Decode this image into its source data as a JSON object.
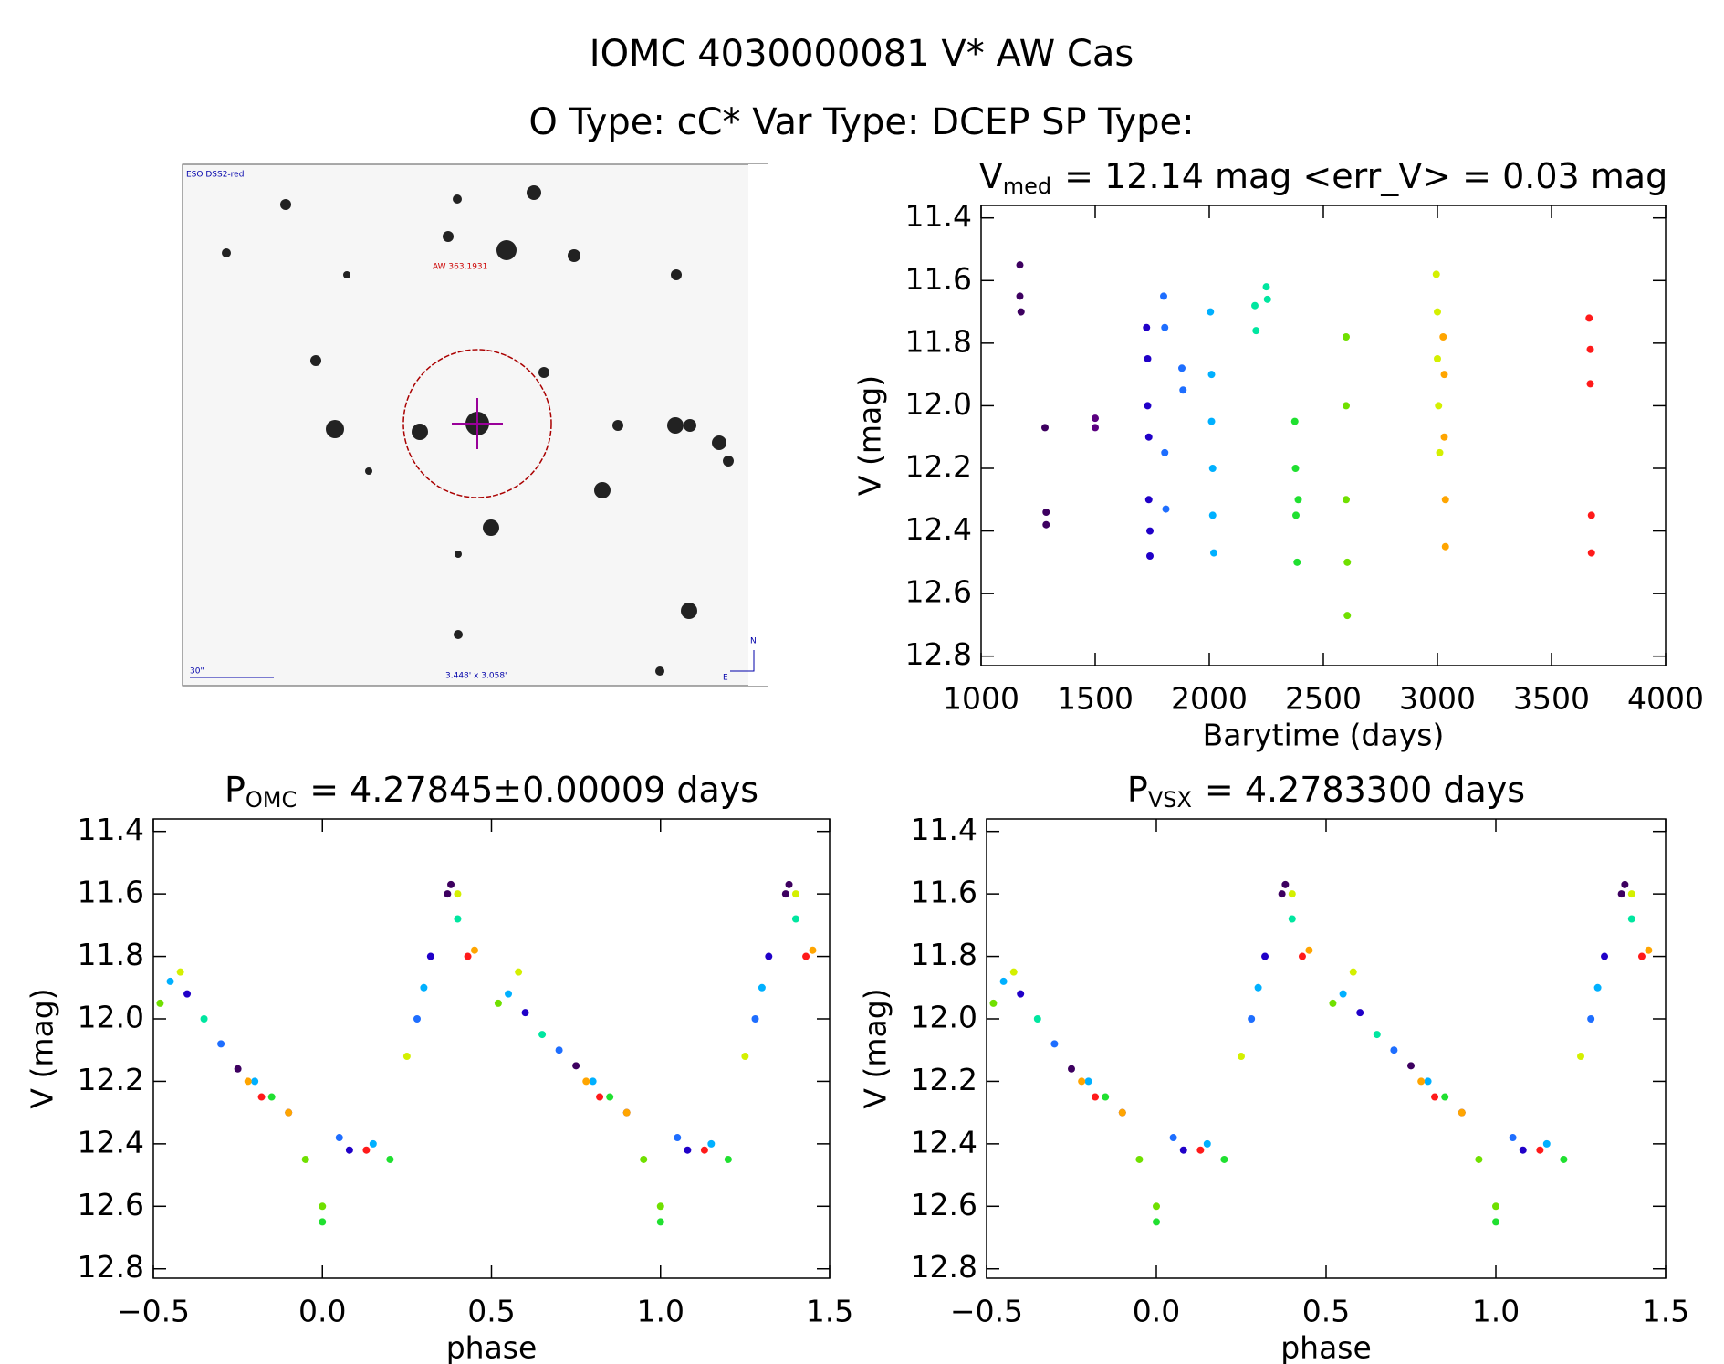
{
  "header": {
    "title": "IOMC 4030000081   V* AW Cas",
    "subtitle": "O Type: cC*  Var Type: DCEP  SP Type:"
  },
  "finder_image": {
    "survey": "ESO DSS2-red",
    "target": "AW 363.1931",
    "scale": "30\"",
    "field": "3.448' x 3.058'",
    "north": "N",
    "east": "E"
  },
  "chart_data": [
    {
      "type": "scatter",
      "title_symbol": "V",
      "title_subscript": "med",
      "title_rest": "= 12.14 mag <err_V> = 0.03 mag",
      "x_label": "Barytime (days)",
      "y_label": "V (mag)",
      "xlim": [
        1000,
        4000
      ],
      "xticks": [
        1000,
        1500,
        2000,
        2500,
        3000,
        3500,
        4000
      ],
      "ylim": [
        12.83,
        11.36
      ],
      "yticks": [
        11.4,
        11.6,
        11.8,
        12.0,
        12.2,
        12.4,
        12.6,
        12.8
      ],
      "series": [
        {
          "color": "#3d0060",
          "x": [
            1170,
            1170,
            1175,
            1280,
            1285,
            1285
          ],
          "values": [
            11.55,
            11.65,
            11.7,
            12.07,
            12.34,
            12.38
          ]
        },
        {
          "color": "#5a0080",
          "x": [
            1500,
            1500
          ],
          "values": [
            12.04,
            12.07
          ]
        },
        {
          "color": "#2000c8",
          "x": [
            1725,
            1730,
            1730,
            1735,
            1735,
            1740,
            1740
          ],
          "values": [
            11.75,
            11.85,
            12.0,
            12.1,
            12.3,
            12.4,
            12.48
          ]
        },
        {
          "color": "#1e6eff",
          "x": [
            1800,
            1805,
            1805,
            1810,
            1880,
            1885
          ],
          "values": [
            11.65,
            11.75,
            12.15,
            12.33,
            11.88,
            11.95
          ]
        },
        {
          "color": "#00b0ff",
          "x": [
            2005,
            2010,
            2010,
            2015,
            2015,
            2020
          ],
          "values": [
            11.7,
            11.9,
            12.05,
            12.2,
            12.35,
            12.47
          ]
        },
        {
          "color": "#00e6a0",
          "x": [
            2200,
            2205,
            2250,
            2255
          ],
          "values": [
            11.68,
            11.76,
            11.62,
            11.66
          ]
        },
        {
          "color": "#20e030",
          "x": [
            2375,
            2378,
            2380,
            2385,
            2390
          ],
          "values": [
            12.05,
            12.2,
            12.35,
            12.5,
            12.3
          ]
        },
        {
          "color": "#70e000",
          "x": [
            2600,
            2600,
            2600,
            2605,
            2605
          ],
          "values": [
            11.78,
            12.0,
            12.3,
            12.5,
            12.67
          ]
        },
        {
          "color": "#d4f000",
          "x": [
            2995,
            3000,
            3000,
            3005,
            3010
          ],
          "values": [
            11.58,
            11.7,
            11.85,
            12.0,
            12.15
          ]
        },
        {
          "color": "#ffa500",
          "x": [
            3025,
            3030,
            3030,
            3035,
            3035
          ],
          "values": [
            11.78,
            11.9,
            12.1,
            12.3,
            12.45
          ]
        },
        {
          "color": "#ff1a1a",
          "x": [
            3665,
            3670,
            3670,
            3675,
            3675
          ],
          "values": [
            11.72,
            11.82,
            11.93,
            12.35,
            12.47
          ]
        }
      ]
    },
    {
      "type": "scatter",
      "title_symbol": "P",
      "title_subscript": "OMC",
      "title_rest": "= 4.27845±0.00009 days",
      "x_label": "phase",
      "y_label": "V (mag)",
      "xlim": [
        -0.5,
        1.5
      ],
      "xticks": [
        {
          "value": -0.5,
          "label": "−0.5"
        },
        {
          "value": 0,
          "label": "0.0"
        },
        0.5,
        {
          "value": 1,
          "label": "1.0"
        },
        1.5
      ],
      "ylim": [
        12.83,
        11.36
      ],
      "yticks": [
        11.4,
        11.6,
        11.8,
        12.0,
        12.2,
        12.4,
        12.6,
        12.8
      ],
      "series": [
        {
          "color": "#3d0060",
          "x": [
            -0.25,
            0.37,
            0.38,
            0.75,
            1.37,
            1.38
          ],
          "values": [
            12.16,
            11.6,
            11.57,
            12.15,
            11.6,
            11.57
          ]
        },
        {
          "color": "#2000c8",
          "x": [
            -0.4,
            -0.1,
            0.08,
            0.32,
            0.6,
            0.9,
            1.08,
            1.32
          ],
          "values": [
            11.92,
            12.3,
            12.42,
            11.8,
            11.98,
            12.3,
            12.42,
            11.8
          ]
        },
        {
          "color": "#1e6eff",
          "x": [
            -0.3,
            0.05,
            0.28,
            0.7,
            1.05,
            1.28
          ],
          "values": [
            12.08,
            12.38,
            12.0,
            12.1,
            12.38,
            12.0
          ]
        },
        {
          "color": "#00b0ff",
          "x": [
            -0.45,
            -0.2,
            0.15,
            0.3,
            0.55,
            0.8,
            1.15,
            1.3
          ],
          "values": [
            11.88,
            12.2,
            12.4,
            11.9,
            11.92,
            12.2,
            12.4,
            11.9
          ]
        },
        {
          "color": "#00e6a0",
          "x": [
            -0.35,
            0.4,
            0.65,
            1.4
          ],
          "values": [
            12.0,
            11.68,
            12.05,
            11.68
          ]
        },
        {
          "color": "#20e030",
          "x": [
            -0.15,
            0.0,
            0.2,
            0.85,
            1.0,
            1.2
          ],
          "values": [
            12.25,
            12.65,
            12.45,
            12.25,
            12.65,
            12.45
          ]
        },
        {
          "color": "#70e000",
          "x": [
            -0.48,
            -0.05,
            0.0,
            0.52,
            0.95,
            1.0
          ],
          "values": [
            11.95,
            12.45,
            12.6,
            11.95,
            12.45,
            12.6
          ]
        },
        {
          "color": "#d4f000",
          "x": [
            -0.42,
            0.25,
            0.4,
            0.58,
            1.25,
            1.4
          ],
          "values": [
            11.85,
            12.12,
            11.6,
            11.85,
            12.12,
            11.6
          ]
        },
        {
          "color": "#ffa500",
          "x": [
            -0.22,
            -0.1,
            0.45,
            0.78,
            0.9,
            1.45
          ],
          "values": [
            12.2,
            12.3,
            11.78,
            12.2,
            12.3,
            11.78
          ]
        },
        {
          "color": "#ff1a1a",
          "x": [
            -0.18,
            0.13,
            0.43,
            0.82,
            1.13,
            1.43
          ],
          "values": [
            12.25,
            12.42,
            11.8,
            12.25,
            12.42,
            11.8
          ]
        }
      ]
    },
    {
      "type": "scatter",
      "title_symbol": "P",
      "title_subscript": "VSX",
      "title_rest": "= 4.2783300 days",
      "x_label": "phase",
      "y_label": "V (mag)",
      "xlim": [
        -0.5,
        1.5
      ],
      "xticks": [
        {
          "value": -0.5,
          "label": "−0.5"
        },
        {
          "value": 0,
          "label": "0.0"
        },
        0.5,
        {
          "value": 1,
          "label": "1.0"
        },
        1.5
      ],
      "ylim": [
        12.83,
        11.36
      ],
      "yticks": [
        11.4,
        11.6,
        11.8,
        12.0,
        12.2,
        12.4,
        12.6,
        12.8
      ],
      "series": [
        {
          "color": "#3d0060",
          "x": [
            -0.25,
            0.37,
            0.38,
            0.75,
            1.37,
            1.38
          ],
          "values": [
            12.16,
            11.6,
            11.57,
            12.15,
            11.6,
            11.57
          ]
        },
        {
          "color": "#2000c8",
          "x": [
            -0.4,
            -0.1,
            0.08,
            0.32,
            0.6,
            0.9,
            1.08,
            1.32
          ],
          "values": [
            11.92,
            12.3,
            12.42,
            11.8,
            11.98,
            12.3,
            12.42,
            11.8
          ]
        },
        {
          "color": "#1e6eff",
          "x": [
            -0.3,
            0.05,
            0.28,
            0.7,
            1.05,
            1.28
          ],
          "values": [
            12.08,
            12.38,
            12.0,
            12.1,
            12.38,
            12.0
          ]
        },
        {
          "color": "#00b0ff",
          "x": [
            -0.45,
            -0.2,
            0.15,
            0.3,
            0.55,
            0.8,
            1.15,
            1.3
          ],
          "values": [
            11.88,
            12.2,
            12.4,
            11.9,
            11.92,
            12.2,
            12.4,
            11.9
          ]
        },
        {
          "color": "#00e6a0",
          "x": [
            -0.35,
            0.4,
            0.65,
            1.4
          ],
          "values": [
            12.0,
            11.68,
            12.05,
            11.68
          ]
        },
        {
          "color": "#20e030",
          "x": [
            -0.15,
            0.0,
            0.2,
            0.85,
            1.0,
            1.2
          ],
          "values": [
            12.25,
            12.65,
            12.45,
            12.25,
            12.65,
            12.45
          ]
        },
        {
          "color": "#70e000",
          "x": [
            -0.48,
            -0.05,
            0.0,
            0.52,
            0.95,
            1.0
          ],
          "values": [
            11.95,
            12.45,
            12.6,
            11.95,
            12.45,
            12.6
          ]
        },
        {
          "color": "#d4f000",
          "x": [
            -0.42,
            0.25,
            0.4,
            0.58,
            1.25,
            1.4
          ],
          "values": [
            11.85,
            12.12,
            11.6,
            11.85,
            12.12,
            11.6
          ]
        },
        {
          "color": "#ffa500",
          "x": [
            -0.22,
            -0.1,
            0.45,
            0.78,
            0.9,
            1.45
          ],
          "values": [
            12.2,
            12.3,
            11.78,
            12.2,
            12.3,
            11.78
          ]
        },
        {
          "color": "#ff1a1a",
          "x": [
            -0.18,
            0.13,
            0.43,
            0.82,
            1.13,
            1.43
          ],
          "values": [
            12.25,
            12.42,
            11.8,
            12.25,
            12.42,
            11.8
          ]
        }
      ]
    }
  ]
}
